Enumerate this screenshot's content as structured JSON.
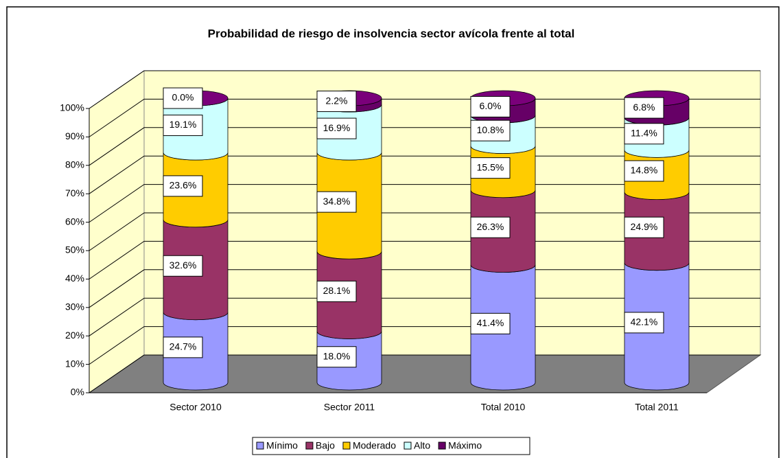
{
  "chart_data": {
    "type": "stacked_bar_3d",
    "title": "Probabilidad de riesgo de insolvencia sector avícola frente al total",
    "categories": [
      "Sector 2010",
      "Sector 2011",
      "Total 2010",
      "Total 2011"
    ],
    "series": [
      {
        "name": "Mínimo",
        "color": "#9999ff",
        "values": [
          24.7,
          18.0,
          41.4,
          42.1
        ],
        "value_labels": [
          "24.7%",
          "18.0%",
          "41.4%",
          "42.1%"
        ]
      },
      {
        "name": "Bajo",
        "color": "#993366",
        "values": [
          32.6,
          28.1,
          26.3,
          24.9
        ],
        "value_labels": [
          "32.6%",
          "28.1%",
          "26.3%",
          "24.9%"
        ]
      },
      {
        "name": "Moderado",
        "color": "#ffcc00",
        "values": [
          23.6,
          34.8,
          15.5,
          14.8
        ],
        "value_labels": [
          "23.6%",
          "34.8%",
          "15.5%",
          "14.8%"
        ]
      },
      {
        "name": "Alto",
        "color": "#ccffff",
        "values": [
          19.1,
          16.9,
          10.8,
          11.4
        ],
        "value_labels": [
          "19.1%",
          "16.9%",
          "10.8%",
          "11.4%"
        ]
      },
      {
        "name": "Máximo",
        "color": "#660066",
        "values": [
          0.0,
          2.2,
          6.0,
          6.8
        ],
        "value_labels": [
          "0.0%",
          "2.2%",
          "6.0%",
          "6.8%"
        ]
      }
    ],
    "ylim": [
      0,
      100
    ],
    "yticks": [
      {
        "value": 0,
        "label": "0%"
      },
      {
        "value": 10,
        "label": "10%"
      },
      {
        "value": 20,
        "label": "20%"
      },
      {
        "value": 30,
        "label": "30%"
      },
      {
        "value": 40,
        "label": "40%"
      },
      {
        "value": 50,
        "label": "50%"
      },
      {
        "value": 60,
        "label": "60%"
      },
      {
        "value": 70,
        "label": "70%"
      },
      {
        "value": 80,
        "label": "80%"
      },
      {
        "value": 90,
        "label": "90%"
      },
      {
        "value": 100,
        "label": "100%"
      }
    ],
    "grid": true,
    "legend": "bottom"
  }
}
